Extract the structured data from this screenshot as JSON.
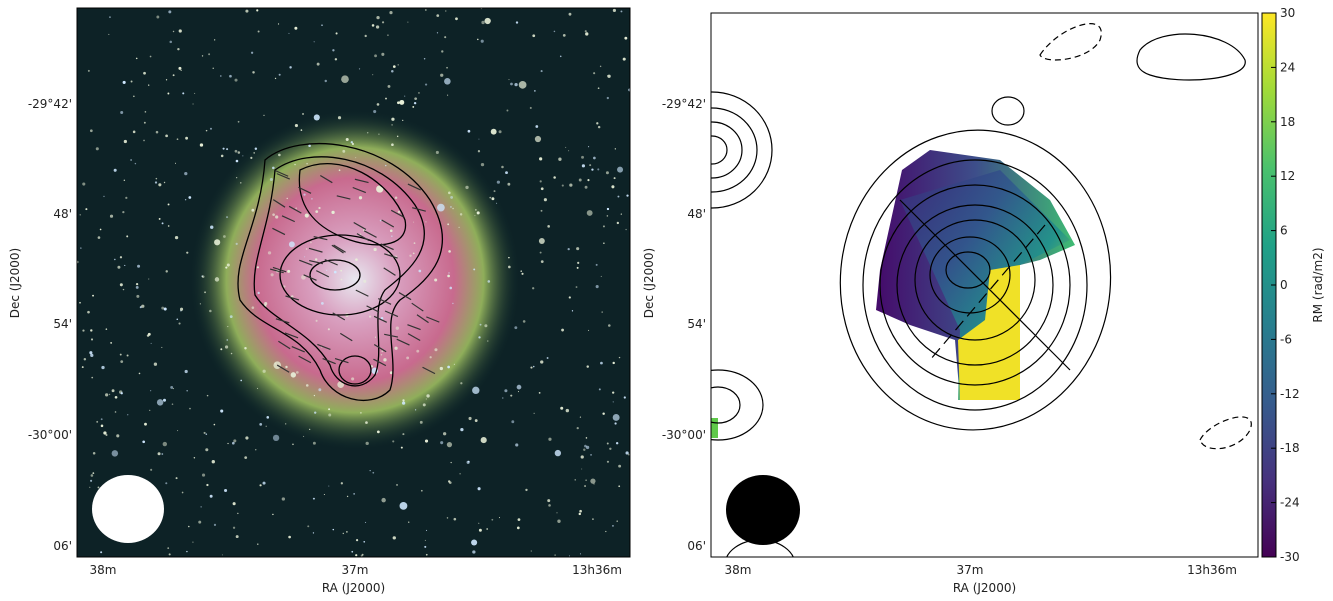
{
  "chart_data": [
    {
      "type": "image",
      "xlabel": "RA (J2000)",
      "ylabel": "Dec (J2000)",
      "xtick_labels": [
        "38m",
        "37m",
        "13h36m"
      ],
      "ytick_labels": [
        "-29°42'",
        "48'",
        "54'",
        "-30°00'",
        "06'"
      ]
    },
    {
      "type": "heatmap",
      "xlabel": "RA (J2000)",
      "ylabel": "Dec (J2000)",
      "xtick_labels": [
        "38m",
        "37m",
        "13h36m"
      ],
      "ytick_labels": [
        "-29°42'",
        "48'",
        "54'",
        "-30°00'",
        "06'"
      ],
      "colorbar": {
        "label": "RM (rad/m2)",
        "lim": [
          -30,
          30
        ],
        "ticks": [
          -30,
          -24,
          -18,
          -12,
          -6,
          0,
          6,
          12,
          18,
          24,
          30
        ],
        "colormap": "viridis"
      }
    }
  ]
}
